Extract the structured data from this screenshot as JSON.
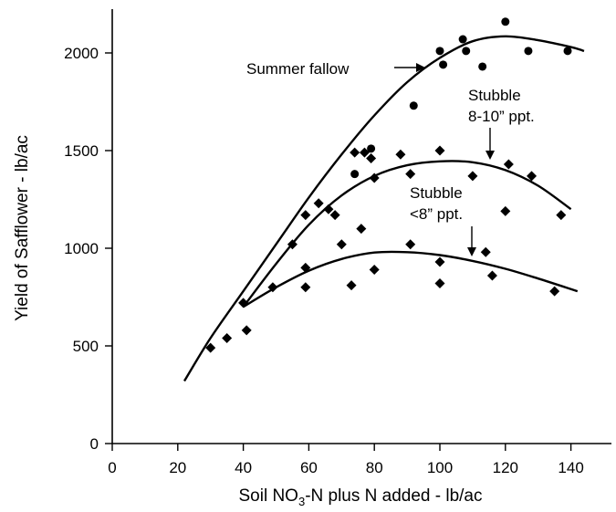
{
  "chart_data": {
    "type": "scatter",
    "title": "",
    "xlabel": "Soil NO3-N plus N added - lb/ac",
    "xlabel_main": "Soil NO",
    "xlabel_sub": "3",
    "xlabel_rest": "-N plus N added - lb/ac",
    "ylabel": "Yield of Safflower - lb/ac",
    "xlim": [
      0,
      150
    ],
    "ylim": [
      0,
      2250
    ],
    "xticks": [
      0,
      20,
      40,
      60,
      80,
      100,
      120,
      140
    ],
    "yticks": [
      0,
      500,
      1000,
      1500,
      2000
    ],
    "grid": false,
    "series": [
      {
        "name": "Summer fallow",
        "marker": "circle",
        "points": [
          [
            74,
            1380
          ],
          [
            79,
            1510
          ],
          [
            92,
            1730
          ],
          [
            100,
            2010
          ],
          [
            101,
            1940
          ],
          [
            107,
            2070
          ],
          [
            108,
            2010
          ],
          [
            113,
            1930
          ],
          [
            120,
            2160
          ],
          [
            127,
            2010
          ],
          [
            139,
            2010
          ]
        ],
        "curve": [
          [
            22,
            320
          ],
          [
            30,
            540
          ],
          [
            40,
            780
          ],
          [
            50,
            1020
          ],
          [
            60,
            1260
          ],
          [
            70,
            1480
          ],
          [
            80,
            1680
          ],
          [
            90,
            1850
          ],
          [
            100,
            1975
          ],
          [
            110,
            2060
          ],
          [
            120,
            2085
          ],
          [
            130,
            2065
          ],
          [
            140,
            2030
          ],
          [
            144,
            2010
          ]
        ]
      },
      {
        "name": "Stubble 8-10\" ppt.",
        "marker": "diamond",
        "points": [
          [
            30,
            490
          ],
          [
            35,
            540
          ],
          [
            40,
            720
          ],
          [
            41,
            580
          ],
          [
            59,
            1170
          ],
          [
            59,
            900
          ],
          [
            63,
            1230
          ],
          [
            66,
            1200
          ],
          [
            68,
            1170
          ],
          [
            74,
            1490
          ],
          [
            77,
            1490
          ],
          [
            79,
            1460
          ],
          [
            80,
            1360
          ],
          [
            88,
            1480
          ],
          [
            91,
            1380
          ],
          [
            100,
            1500
          ],
          [
            110,
            1370
          ],
          [
            121,
            1430
          ],
          [
            128,
            1370
          ]
        ],
        "curve": [
          [
            40,
            700
          ],
          [
            50,
            920
          ],
          [
            60,
            1120
          ],
          [
            70,
            1270
          ],
          [
            80,
            1370
          ],
          [
            90,
            1425
          ],
          [
            100,
            1445
          ],
          [
            110,
            1440
          ],
          [
            120,
            1400
          ],
          [
            130,
            1320
          ],
          [
            140,
            1200
          ]
        ]
      },
      {
        "name": "Stubble <8\" ppt.",
        "marker": "diamond",
        "points": [
          [
            49,
            800
          ],
          [
            55,
            1020
          ],
          [
            59,
            800
          ],
          [
            70,
            1020
          ],
          [
            73,
            810
          ],
          [
            76,
            1100
          ],
          [
            80,
            890
          ],
          [
            91,
            1020
          ],
          [
            100,
            820
          ],
          [
            100,
            930
          ],
          [
            114,
            980
          ],
          [
            116,
            860
          ],
          [
            120,
            1190
          ],
          [
            135,
            780
          ],
          [
            137,
            1170
          ]
        ],
        "curve": [
          [
            40,
            700
          ],
          [
            50,
            800
          ],
          [
            60,
            885
          ],
          [
            70,
            945
          ],
          [
            80,
            978
          ],
          [
            90,
            980
          ],
          [
            100,
            965
          ],
          [
            110,
            935
          ],
          [
            120,
            895
          ],
          [
            130,
            845
          ],
          [
            142,
            780
          ]
        ]
      }
    ],
    "annotations": [
      {
        "text": "Summer fallow",
        "series": 0
      },
      {
        "text": "Stubble",
        "text2": "8-10” ppt.",
        "series": 1
      },
      {
        "text": "Stubble",
        "text2": "<8” ppt.",
        "series": 2
      }
    ]
  }
}
